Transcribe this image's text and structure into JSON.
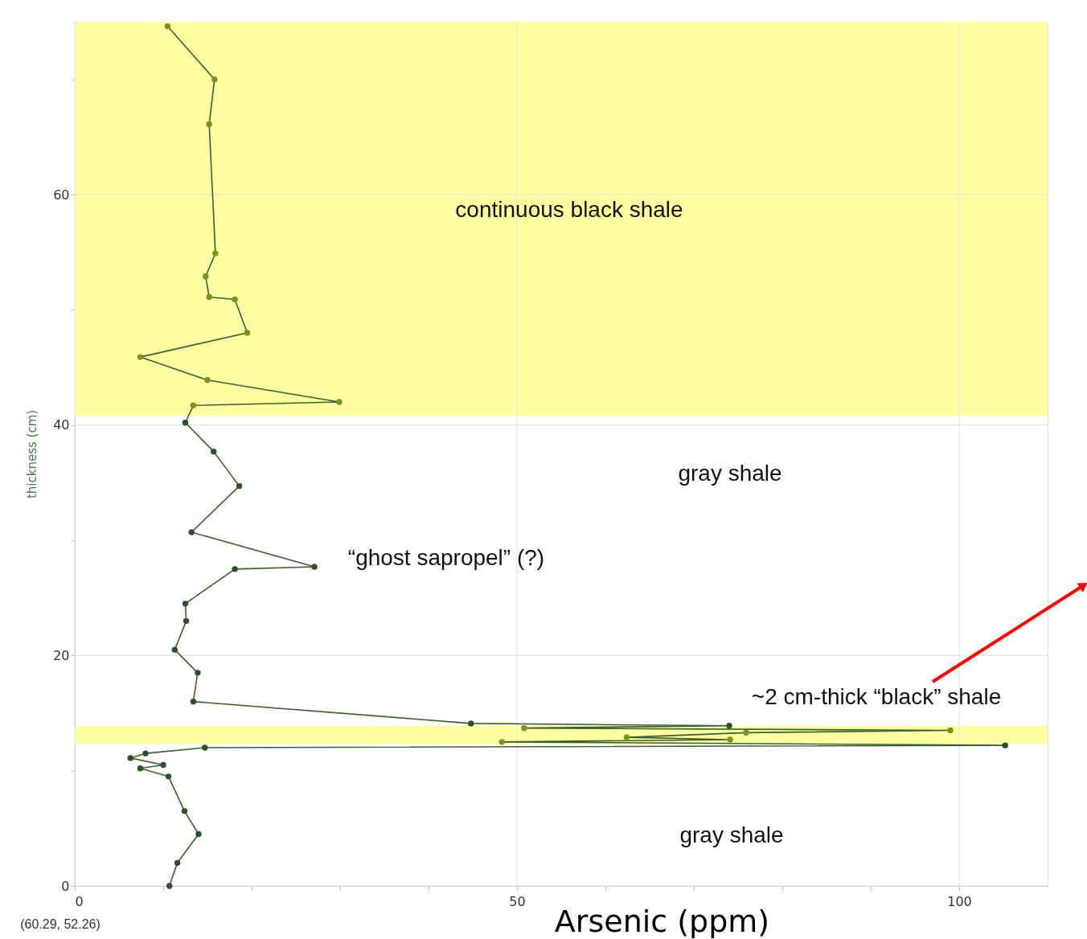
{
  "chart_data": {
    "type": "line",
    "xlabel": "Arsenic (ppm)",
    "ylabel": "thickness (cm)",
    "x": [
      10.7,
      11.6,
      14.0,
      12.4,
      10.6,
      7.4,
      10.0,
      6.3,
      8.0,
      14.7,
      105.2,
      48.3,
      74.1,
      62.4,
      75.9,
      99.0,
      50.8,
      74.0,
      44.8,
      13.4,
      13.9,
      11.3,
      12.6,
      12.5,
      18.1,
      27.1,
      13.2,
      18.6,
      15.7,
      12.5,
      13.4,
      29.9,
      15.0,
      7.4,
      19.5,
      18.1,
      15.2,
      14.8,
      15.9,
      15.2,
      15.8,
      10.5
    ],
    "series": [
      {
        "color": "#3d5f2e",
        "marker": "circle",
        "values": [
          0,
          2.0,
          4.5,
          6.5,
          9.5,
          10.2,
          10.5,
          11.1,
          11.5,
          12.0,
          12.2,
          12.5,
          12.7,
          12.9,
          13.3,
          13.5,
          13.7,
          13.9,
          14.1,
          16.0,
          18.5,
          20.5,
          23.0,
          24.5,
          27.5,
          27.7,
          30.7,
          34.7,
          37.7,
          40.2,
          41.7,
          42.0,
          43.9,
          45.9,
          48.0,
          50.9,
          51.1,
          52.9,
          54.9,
          66.1,
          70.0,
          74.6
        ],
        "colors": [
          "#2f4f2f",
          "#2f4f2f",
          "#2f4f2f",
          "#2f4f2f",
          "#2f4f2f",
          "#2f4f2f",
          "#2f4f2f",
          "#2f4f2f",
          "#2f4f2f",
          "#2f4f2f",
          "#2f4f2f",
          "#7a941e",
          "#7a941e",
          "#7a941e",
          "#7a941e",
          "#7a941e",
          "#7a941e",
          "#2f4f2f",
          "#2f4f2f",
          "#2f4f2f",
          "#2f4f2f",
          "#2f4f2f",
          "#2f4f2f",
          "#2f4f2f",
          "#2f4f2f",
          "#2f4f2f",
          "#2f4f2f",
          "#2f4f2f",
          "#2f4f2f",
          "#2f4f2f",
          "#7a941e",
          "#7a941e",
          "#7a941e",
          "#7a941e",
          "#7a941e",
          "#7a941e",
          "#7a941e",
          "#7a941e",
          "#7a941e",
          "#7a941e",
          "#7a941e",
          "#7a941e"
        ]
      }
    ],
    "xlim": [
      0,
      110
    ],
    "ylim": [
      0,
      75
    ],
    "xticks": [
      0,
      {
        "value": 10,
        "label": null
      },
      {
        "value": 20,
        "label": null
      },
      {
        "value": 30,
        "label": null
      },
      {
        "value": 40,
        "label": null
      },
      50,
      {
        "value": 60,
        "label": null
      },
      {
        "value": 70,
        "label": null
      },
      {
        "value": 80,
        "label": null
      },
      {
        "value": 90,
        "label": null
      },
      100
    ],
    "yticks": [
      0,
      {
        "value": 10,
        "label": null
      },
      20,
      {
        "value": 30,
        "label": null
      },
      40,
      {
        "value": 50,
        "label": null
      },
      60,
      {
        "value": 70,
        "label": null
      }
    ],
    "grid": true,
    "line_style": "solid",
    "bands": [
      {
        "axis": "y",
        "from": 40.8,
        "to": 75,
        "color": "#ffff99"
      },
      {
        "axis": "y",
        "from": 12.3,
        "to": 13.9,
        "color": "#ffff99"
      }
    ],
    "annotations": [
      "continuous    black    shale",
      "gray shale",
      "“ghost sapropel” (?)",
      "~2 cm-thick “black” shale",
      "gray shale",
      "(60.29, 52.26)"
    ]
  }
}
